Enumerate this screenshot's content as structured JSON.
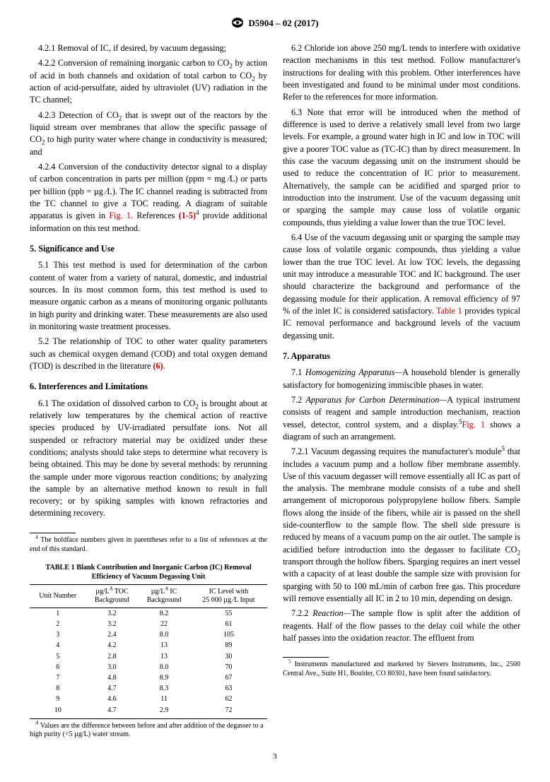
{
  "header": {
    "designation": "D5904 – 02 (2017)"
  },
  "col1": {
    "p_421": "4.2.1 Removal of IC, if desired, by vacuum degassing;",
    "p_422_a": "4.2.2 Conversion of remaining inorganic carbon to CO",
    "p_422_b": " by action of acid in both channels and oxidation of total carbon to CO",
    "p_422_c": " by action of acid-persulfate, aided by ultraviolet (UV) radiation in the TC channel;",
    "p_423_a": "4.2.3 Detection of CO",
    "p_423_b": " that is swept out of the reactors by the liquid stream over membranes that allow the specific passage of CO",
    "p_423_c": " to high purity water where change in conductivity is measured; and",
    "p_424_a": "4.2.4 Conversion of the conductivity detector signal to a display of carbon concentration in parts per million (ppm = mg ⁄L) or parts per billion (ppb = µg ⁄L). The IC channel reading is subtracted from the TC channel to give a TOC reading. A diagram of suitable apparatus is given in ",
    "p_424_fig": "Fig. 1",
    "p_424_b": ". References ",
    "p_424_refs": "(1-5)",
    "p_424_c": " provide additional information on this test method.",
    "h5": "5. Significance and Use",
    "p_51": "5.1 This test method is used for determination of the carbon content of water from a variety of natural, domestic, and industrial sources. In its most common form, this test method is used to measure organic carbon as a means of monitoring organic pollutants in high purity and drinking water. These measurements are also used in monitoring waste treatment processes.",
    "p_52_a": "5.2 The relationship of TOC to other water quality parameters such as chemical oxygen demand (COD) and total oxygen demand (TOD) is described in the literature ",
    "p_52_ref": "(6)",
    "p_52_b": ".",
    "h6": "6. Interferences and Limitations",
    "p_61_a": "6.1 The oxidation of dissolved carbon to CO",
    "p_61_b": " is brought about at relatively low temperatures by the chemical action of reactive species produced by UV-irradiated persulfate ions. Not all suspended or refractory material may be oxidized under these conditions; analysts should take steps to determine what recovery is being obtained. This may be done by several methods: by rerunning the sample under more vigorous reaction conditions; by analyzing the sample by an alternative method known to result in full recovery; or by spiking samples with known refractories and determining recovery.",
    "fn4": " The boldface numbers given in parentheses refer to a list of references at the end of this standard.",
    "table": {
      "title_l1": "TABLE 1 Blank Contribution and Inorganic Carbon (IC) Removal",
      "title_l2": "Efficiency of Vacuum Degassing Unit",
      "headers": [
        "Unit Number",
        "µg/Lᴬ TOC Background",
        "µg/Lᴬ IC Background",
        "IC Level with 25 000 µg ⁄L Input"
      ],
      "rows": [
        [
          "1",
          "3.2",
          "8.2",
          "55"
        ],
        [
          "2",
          "3.2",
          "22",
          "61"
        ],
        [
          "3",
          "2.4",
          "8.0",
          "105"
        ],
        [
          "4",
          "4.2",
          "13",
          "89"
        ],
        [
          "5",
          "2.8",
          "13",
          "30"
        ],
        [
          "6",
          "3.0",
          "8.0",
          "70"
        ],
        [
          "7",
          "4.8",
          "8.9",
          "67"
        ],
        [
          "8",
          "4.7",
          "8.3",
          "63"
        ],
        [
          "9",
          "4.6",
          "11",
          "62"
        ],
        [
          "10",
          "4.7",
          "2.9",
          "72"
        ]
      ],
      "note": " Values are the difference between before and after addition of the degasser to a high purity (<5 µg/L) water stream."
    }
  },
  "col2": {
    "p_62": "6.2 Chloride ion above 250 mg/L tends to interfere with oxidative reaction mechanisms in this test method. Follow manufacturer's instructions for dealing with this problem. Other interferences have been investigated and found to be minimal under most conditions. Refer to the references for more information.",
    "p_63": "6.3 Note that error will be introduced when the method of difference is used to derive a relatively small level from two large levels. For example, a ground water high in IC and low in TOC will give a poorer TOC value as (TC-IC) than by direct measurement. In this case the vacuum degassing unit on the instrument should be used to reduce the concentration of IC prior to measurement. Alternatively, the sample can be acidified and sparged prior to introduction into the instrument. Use of the vacuum degassing unit or sparging the sample may cause loss of volatile organic compounds, thus yielding a value lower than the true TOC level.",
    "p_64_a": "6.4 Use of the vacuum degassing unit or sparging the sample may cause loss of volatile organic compounds, thus yielding a value lower than the true TOC level. At low TOC levels, the degassing unit may introduce a measurable TOC and IC background. The user should characterize the background and performance of the degassing module for their application. A removal efficiency of 97 % of the inlet IC is considered satisfactory. ",
    "p_64_tbl": "Table 1",
    "p_64_b": " provides typical IC removal performance and background levels of the vacuum degassing unit.",
    "h7": "7. Apparatus",
    "p_71_a": "7.1 ",
    "p_71_i": "Homogenizing Apparatus—",
    "p_71_b": "A household blender is generally satisfactory for homogenizing immiscible phases in water.",
    "p_72_a": "7.2 ",
    "p_72_i": "Apparatus for Carbon Determination—",
    "p_72_b": "A typical instrument consists of reagent and sample introduction mechanism, reaction vessel, detector, control system, and a display.",
    "p_72_fig": "Fig. 1",
    "p_72_c": " shows a diagram of such an arrangement.",
    "p_721_a": "7.2.1 Vacuum degassing requires the manufacturer's module",
    "p_721_b": " that includes a vacuum pump and a hollow fiber membrane assembly. Use of this vacuum degasser will remove essentially all IC as part of the analysis. The membrane module consists of a tube and shell arrangement of microporous polypropylene hollow fibers. Sample flows along the inside of the fibers, while air is passed on the shell side-counterflow to the sample flow. The shell side pressure is reduced by means of a vacuum pump on the air outlet. The sample is acidified before introduction into the degasser to facilitate CO",
    "p_721_c": " transport through the hollow fibers. Sparging requires an inert vessel with a capacity of at least double the sample size with provision for sparging with 50 to 100 mL/min of carbon free gas. This procedure will remove essentially all IC in 2 to 10 min, depending on design.",
    "p_722_a": "7.2.2 ",
    "p_722_i": "Reaction—",
    "p_722_b": "The sample flow is split after the addition of reagents. Half of the flow passes to the delay coil while the other half passes into the oxidation reactor. The effluent from",
    "fn5": " Instruments manufactured and marketed by Sievers Instruments, Inc., 2500 Central Ave., Suite H1, Boulder, CO 80301, have been found satisfactory."
  },
  "pagenum": "3"
}
